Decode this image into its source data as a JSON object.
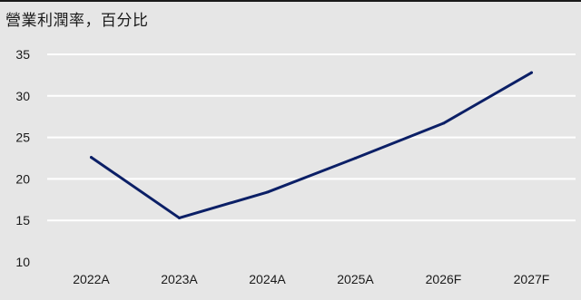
{
  "chart_data": {
    "type": "line",
    "title": "營業利潤率，百分比",
    "categories": [
      "2022A",
      "2023A",
      "2024A",
      "2025A",
      "2026F",
      "2027F"
    ],
    "series": [
      {
        "values": [
          22.6,
          15.3,
          18.4,
          22.5,
          26.7,
          32.8
        ]
      }
    ],
    "ylim": [
      10,
      35
    ],
    "yticks": [
      10,
      15,
      20,
      25,
      30,
      35
    ],
    "grid": true,
    "colors": {
      "line": "#0b1f66",
      "grid": "#ffffff",
      "plot_bg": "#e6e6e6"
    }
  }
}
